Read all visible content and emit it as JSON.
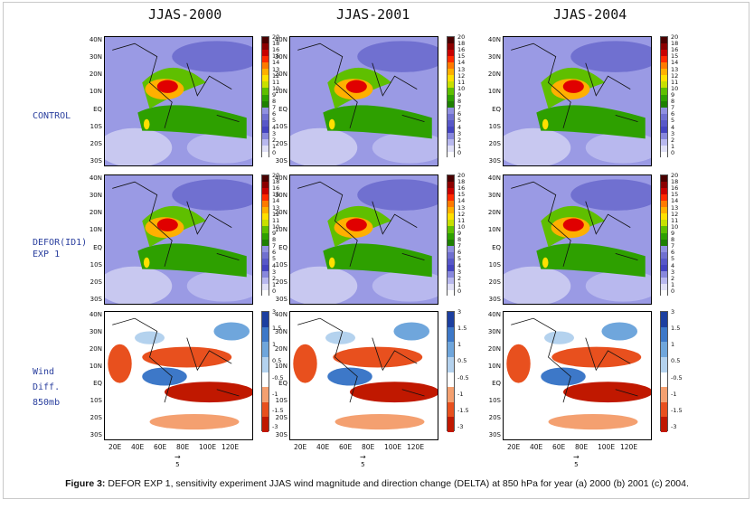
{
  "columns": [
    "JJAS-2000",
    "JJAS-2001",
    "JJAS-2004"
  ],
  "rows": [
    {
      "label_lines": [
        "CONTROL"
      ],
      "kind": "magnitude"
    },
    {
      "label_lines": [
        "DEFOR(ID1)",
        "EXP 1"
      ],
      "kind": "magnitude"
    },
    {
      "label_lines": [
        "Wind",
        "Diff.",
        "850mb"
      ],
      "kind": "difference"
    }
  ],
  "lat_labels": [
    "40N",
    "30N",
    "20N",
    "10N",
    "EQ",
    "10S",
    "20S",
    "30S"
  ],
  "lon_labels": [
    "20E",
    "40E",
    "60E",
    "80E",
    "100E",
    "120E"
  ],
  "magnitude_colorbar": {
    "labels": [
      "20",
      "18",
      "16",
      "15",
      "14",
      "13",
      "12",
      "11",
      "10",
      "9",
      "8",
      "7",
      "6",
      "5",
      "4",
      "3",
      "2",
      "1",
      "0"
    ],
    "colors": [
      "#4a0000",
      "#8b0000",
      "#c80000",
      "#ff2a00",
      "#ff7a00",
      "#ffb000",
      "#ffe000",
      "#c8e000",
      "#5fbf00",
      "#2ea000",
      "#1e8000",
      "#9090e0",
      "#7070d0",
      "#5858c8",
      "#4444c0",
      "#8888dd",
      "#b8b8ee",
      "#e0e0f6",
      "#ffffff"
    ]
  },
  "difference_colorbar": {
    "labels": [
      "3",
      "1.5",
      "1",
      "0.5",
      "-0.5",
      "-1",
      "-1.5",
      "-3"
    ],
    "colors": [
      "#1c3fa0",
      "#3d78c8",
      "#6fa6dc",
      "#b4d2ee",
      "#ffffff",
      "#f4a070",
      "#e8501e",
      "#c01800"
    ]
  },
  "reference_vector_label": "5",
  "caption": {
    "bold": "Figure 3:",
    "text": " DEFOR EXP 1, sensitivity experiment JJAS wind magnitude and direction change (DELTA) at 850 hPa for year (a) 2000 (b) 2001 (c) 2004."
  }
}
